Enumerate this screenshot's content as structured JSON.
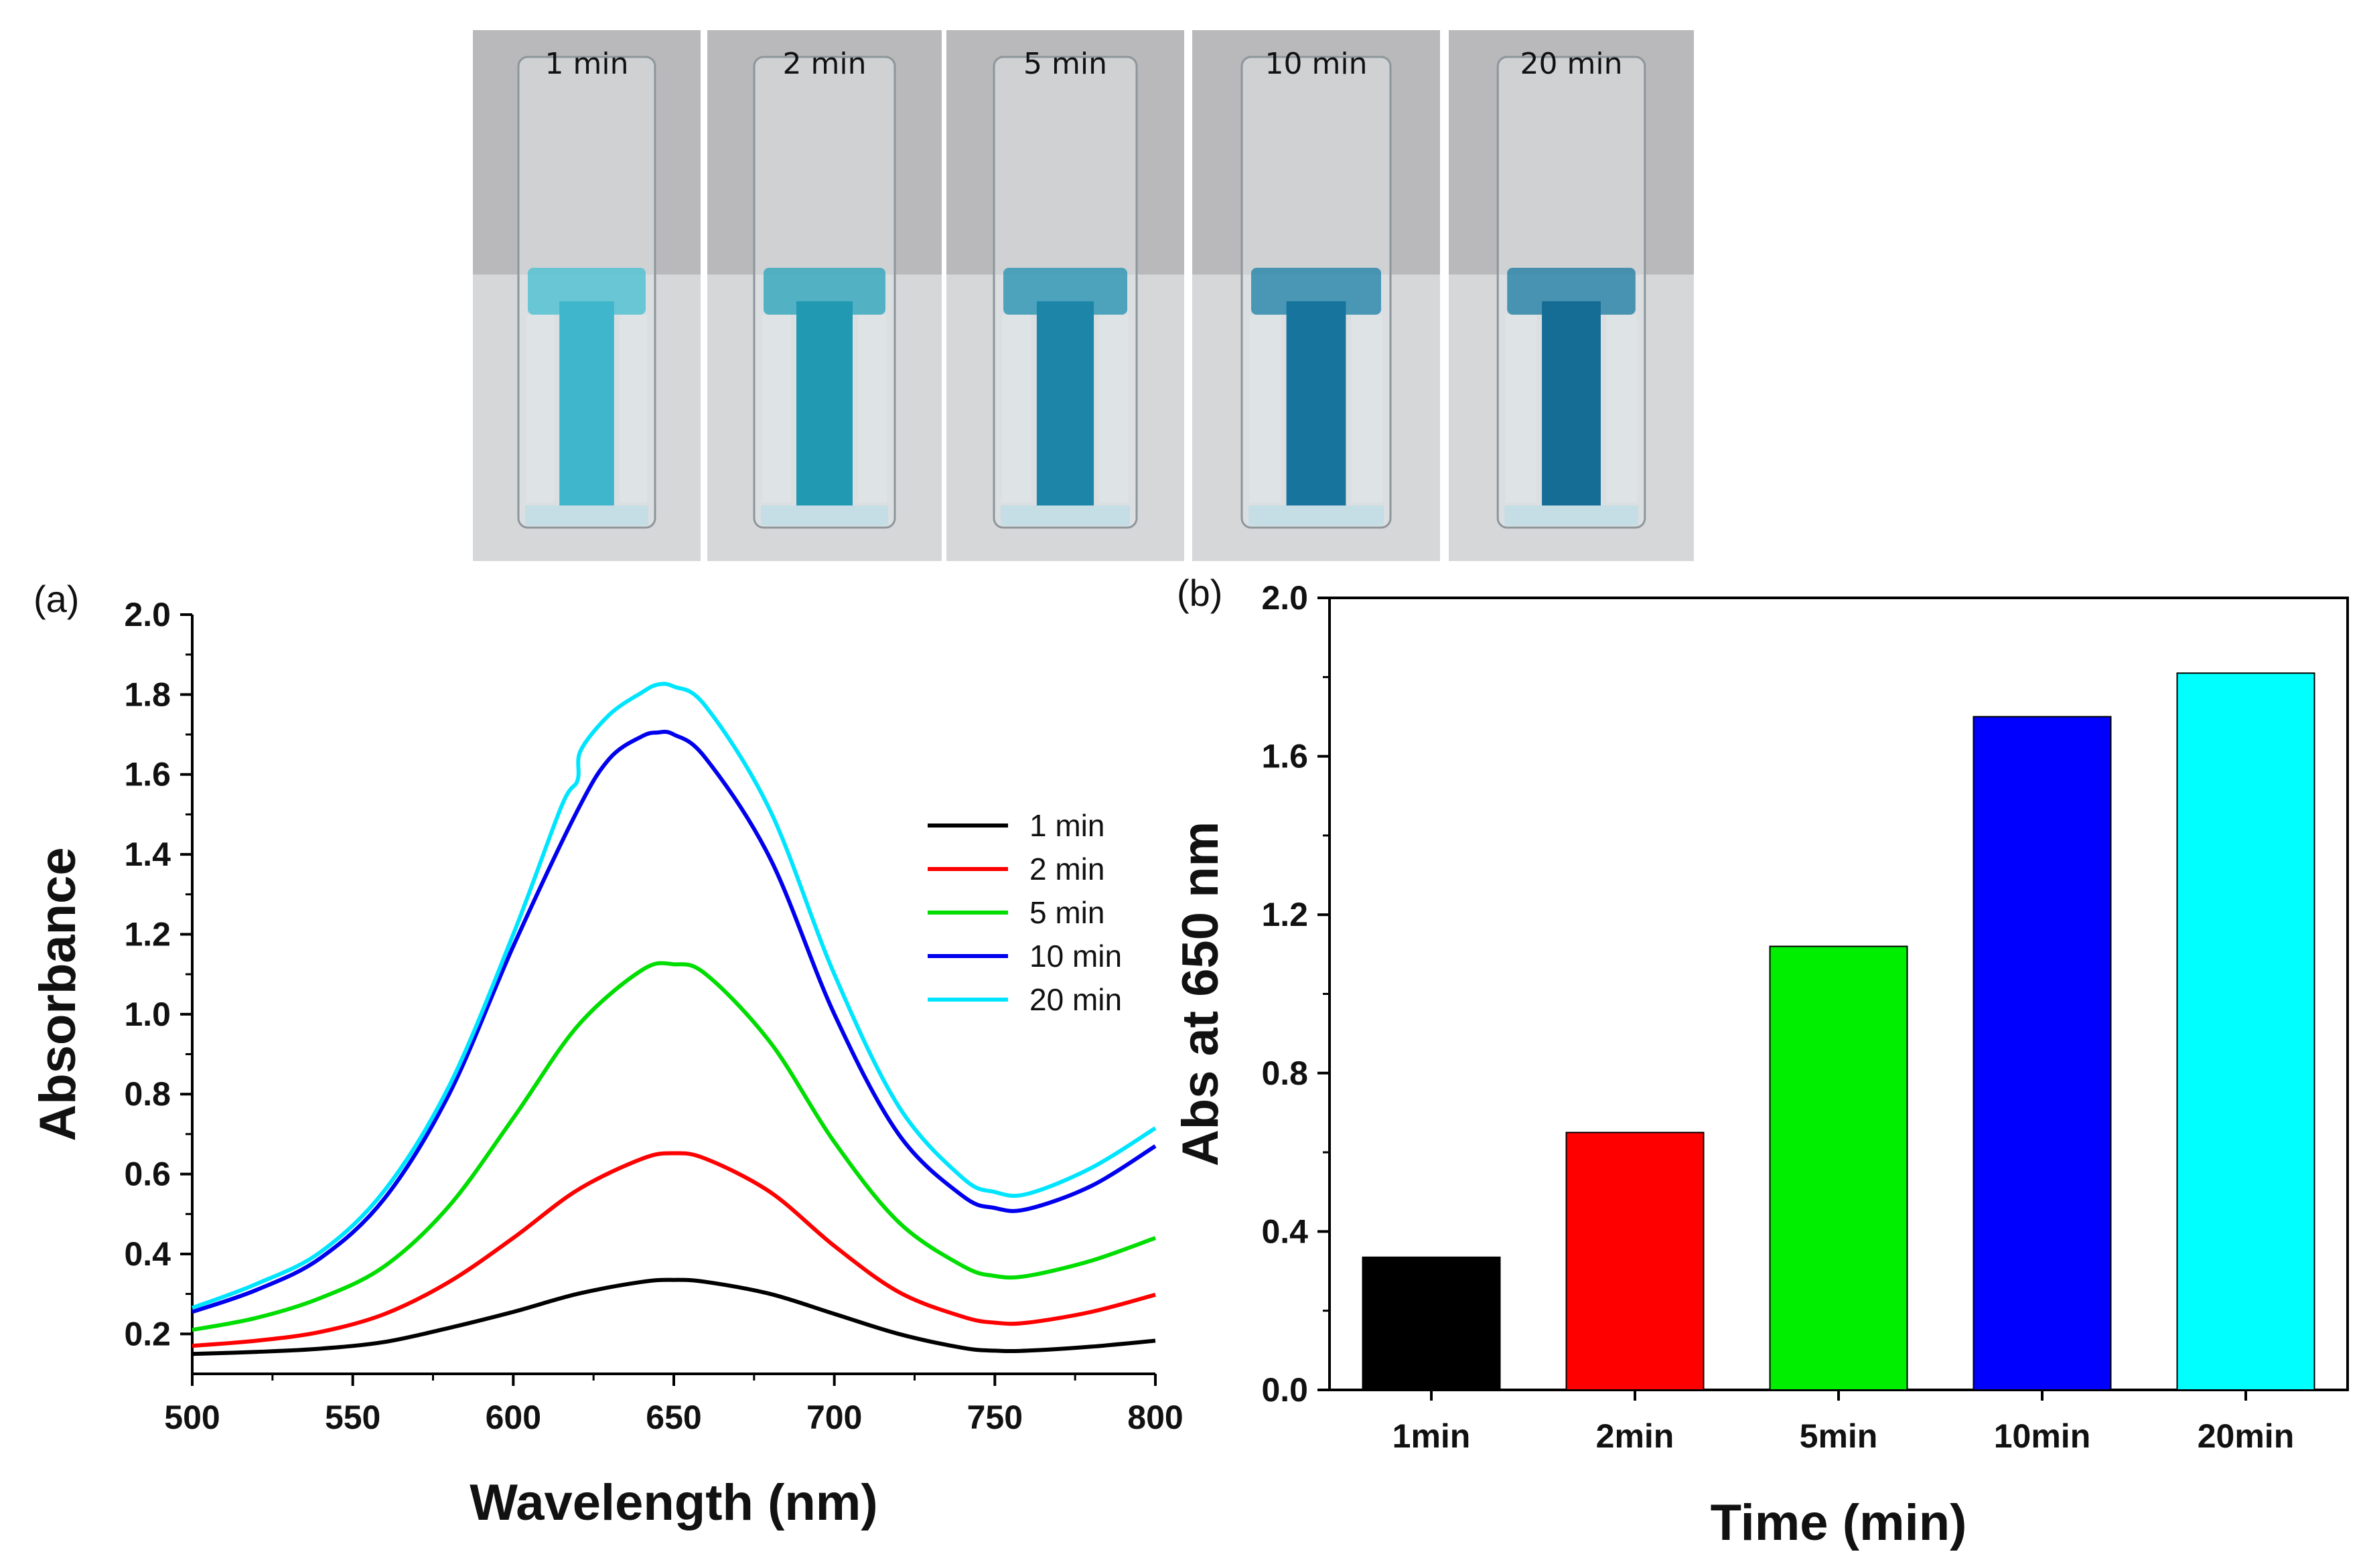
{
  "photo": {
    "cuvettes": [
      {
        "label": "1 min",
        "liquid_color": "#4cc0d2",
        "stem_color": "#3fb6cb"
      },
      {
        "label": "2 min",
        "liquid_color": "#2fa6bd",
        "stem_color": "#2299b2"
      },
      {
        "label": "5 min",
        "liquid_color": "#2a93b3",
        "stem_color": "#1d85a8"
      },
      {
        "label": "10 min",
        "liquid_color": "#2485aa",
        "stem_color": "#17749c"
      },
      {
        "label": "20 min",
        "liquid_color": "#237fa5",
        "stem_color": "#156c95"
      }
    ]
  },
  "chart_data": [
    {
      "panel": "(a)",
      "type": "line",
      "xlabel": "Wavelength (nm)",
      "ylabel": "Absorbance",
      "xlim": [
        500,
        800
      ],
      "ylim": [
        0.1,
        2.0
      ],
      "xticks": [
        "500",
        "550",
        "600",
        "650",
        "700",
        "750",
        "800"
      ],
      "yticks": [
        "0.2",
        "0.4",
        "0.6",
        "0.8",
        "1.0",
        "1.2",
        "1.4",
        "1.6",
        "1.8",
        "2.0"
      ],
      "legend_position": "right",
      "series": [
        {
          "name": "1 min",
          "color": "#000000",
          "x": [
            500,
            520,
            540,
            560,
            580,
            600,
            620,
            640,
            650,
            660,
            680,
            700,
            720,
            740,
            750,
            760,
            780,
            800
          ],
          "y": [
            0.15,
            0.155,
            0.163,
            0.18,
            0.215,
            0.255,
            0.3,
            0.33,
            0.335,
            0.33,
            0.3,
            0.25,
            0.2,
            0.165,
            0.158,
            0.158,
            0.168,
            0.183
          ]
        },
        {
          "name": "2 min",
          "color": "#ff0000",
          "x": [
            500,
            520,
            540,
            560,
            580,
            600,
            620,
            640,
            650,
            660,
            680,
            700,
            720,
            740,
            750,
            760,
            780,
            800
          ],
          "y": [
            0.17,
            0.183,
            0.205,
            0.25,
            0.33,
            0.44,
            0.56,
            0.638,
            0.652,
            0.638,
            0.555,
            0.42,
            0.305,
            0.243,
            0.228,
            0.228,
            0.255,
            0.298
          ]
        },
        {
          "name": "5 min",
          "color": "#00dd00",
          "x": [
            500,
            520,
            540,
            560,
            580,
            600,
            620,
            640,
            650,
            660,
            680,
            700,
            720,
            740,
            750,
            760,
            780,
            800
          ],
          "y": [
            0.21,
            0.24,
            0.29,
            0.37,
            0.52,
            0.74,
            0.97,
            1.11,
            1.125,
            1.1,
            0.93,
            0.68,
            0.48,
            0.37,
            0.345,
            0.345,
            0.383,
            0.44
          ]
        },
        {
          "name": "10 min",
          "color": "#0000ee",
          "x": [
            500,
            520,
            540,
            560,
            580,
            600,
            620,
            630,
            640,
            645,
            650,
            660,
            680,
            700,
            720,
            740,
            750,
            760,
            780,
            800
          ],
          "y": [
            0.255,
            0.31,
            0.39,
            0.54,
            0.8,
            1.17,
            1.51,
            1.64,
            1.695,
            1.705,
            1.7,
            1.64,
            1.39,
            1.0,
            0.7,
            0.545,
            0.515,
            0.512,
            0.57,
            0.67
          ]
        },
        {
          "name": "20 min",
          "color": "#00e5ff",
          "x": [
            500,
            520,
            540,
            560,
            580,
            600,
            615,
            620,
            621,
            630,
            640,
            645,
            650,
            660,
            680,
            700,
            720,
            740,
            750,
            760,
            780,
            800
          ],
          "y": [
            0.265,
            0.325,
            0.405,
            0.56,
            0.82,
            1.2,
            1.52,
            1.585,
            1.66,
            1.75,
            1.805,
            1.825,
            1.82,
            1.77,
            1.51,
            1.1,
            0.77,
            0.59,
            0.555,
            0.55,
            0.615,
            0.715
          ]
        }
      ]
    },
    {
      "panel": "(b)",
      "type": "bar",
      "xlabel": "Time (min)",
      "ylabel": "Abs at 650 nm",
      "ylim": [
        0.0,
        2.0
      ],
      "yticks": [
        "0.0",
        "0.4",
        "0.8",
        "1.2",
        "1.6",
        "2.0"
      ],
      "categories": [
        "1min",
        "2min",
        "5min",
        "10min",
        "20min"
      ],
      "values": [
        0.335,
        0.65,
        1.12,
        1.7,
        1.81
      ],
      "colors": [
        "#000000",
        "#ff0000",
        "#00ee00",
        "#0000ff",
        "#00ffff"
      ]
    }
  ]
}
